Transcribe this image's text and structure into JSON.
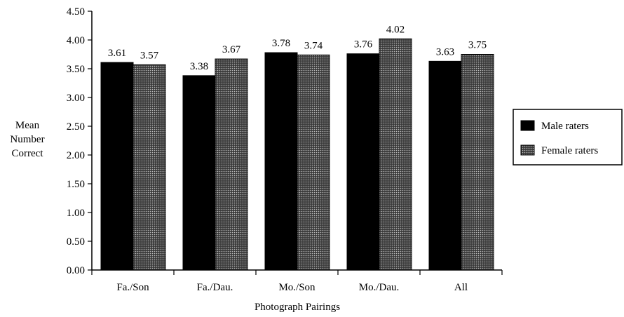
{
  "chart_data": {
    "type": "bar",
    "categories": [
      "Fa./Son",
      "Fa./Dau.",
      "Mo./Son",
      "Mo./Dau.",
      "All"
    ],
    "series": [
      {
        "name": "Male raters",
        "values": [
          3.61,
          3.38,
          3.78,
          3.76,
          3.63
        ],
        "color": "#000000",
        "fill": "solid"
      },
      {
        "name": "Female raters",
        "values": [
          3.57,
          3.67,
          3.74,
          4.02,
          3.75
        ],
        "color": "#555555",
        "fill": "dotted"
      }
    ],
    "data_labels": [
      [
        "3.61",
        "3.38",
        "3.78",
        "3.76",
        "3.63"
      ],
      [
        "3.57",
        "3.67",
        "3.74",
        "4.02",
        "3.75"
      ]
    ],
    "ylabel_lines": [
      "Mean",
      "Number",
      "Correct"
    ],
    "xlabel": "Photograph Pairings",
    "ylim": [
      0,
      4.5
    ],
    "yticks": [
      "0.00",
      "0.50",
      "1.00",
      "1.50",
      "2.00",
      "2.50",
      "3.00",
      "3.50",
      "4.00",
      "4.50"
    ],
    "grid": false,
    "legend_position": "right"
  }
}
